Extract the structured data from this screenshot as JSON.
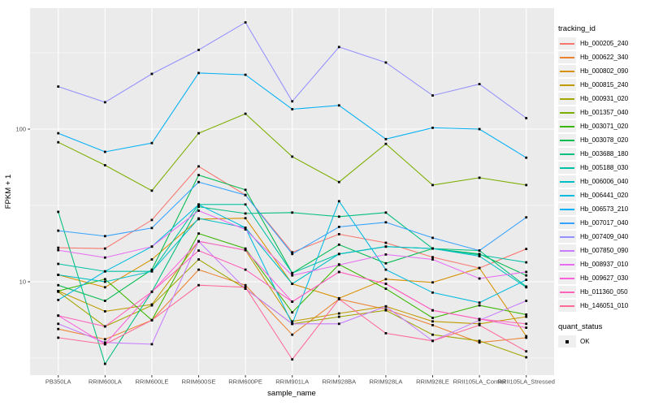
{
  "chart_data": {
    "type": "line",
    "title": "",
    "xlabel": "sample_name",
    "ylabel": "FPKM + 1",
    "y_scale": "log10",
    "y_ticks": [
      10,
      100
    ],
    "y_tick_labels": [
      "10",
      "100"
    ],
    "y_minor_ticks": [
      3.162,
      31.62,
      316.2
    ],
    "ylim": [
      2.44,
      620
    ],
    "grid": true,
    "panel_bg": "#ebebeb",
    "grid_color": "#ffffff",
    "point_color": "#000000",
    "legend_position": "right",
    "legend_title": "tracking_id",
    "quant_status": {
      "title": "quant_status",
      "items": [
        {
          "label": "OK",
          "marker": "black-square"
        }
      ]
    },
    "categories": [
      "PB350LA",
      "RRIM600LA",
      "RRIM600LE",
      "RRIM600SE",
      "RRIM600PE",
      "RRIM901LA",
      "RRIM928BA",
      "RRIM928LA",
      "RRIM928LE",
      "RRII105LA_Control",
      "RRII105LA_Stressed"
    ],
    "series": [
      {
        "name": "Hb_000205_240",
        "color": "#F8766D",
        "values": [
          16.7,
          16.5,
          25.4,
          57,
          37,
          15.6,
          20.5,
          18,
          14.5,
          12.3,
          16.4
        ]
      },
      {
        "name": "Hb_000622_340",
        "color": "#EA8331",
        "values": [
          4.9,
          4.2,
          5.6,
          12,
          9.5,
          4.5,
          7.7,
          6.6,
          5.2,
          4.0,
          4.3
        ]
      },
      {
        "name": "Hb_000802_090",
        "color": "#D89000",
        "values": [
          11.1,
          9.2,
          14,
          25.7,
          26.1,
          9.7,
          7.8,
          10.4,
          9.9,
          12.3,
          4.4
        ]
      },
      {
        "name": "Hb_000815_240",
        "color": "#C09B00",
        "values": [
          8.7,
          6.4,
          7.1,
          18.4,
          16.1,
          5.5,
          6.2,
          6.9,
          5.5,
          5.3,
          5.9
        ]
      },
      {
        "name": "Hb_000931_020",
        "color": "#A3A500",
        "values": [
          8.6,
          5.1,
          7.0,
          14,
          9.0,
          5.3,
          5.9,
          6.5,
          4.5,
          4.1,
          3.2
        ]
      },
      {
        "name": "Hb_001357_040",
        "color": "#7CAE00",
        "values": [
          82,
          58,
          39.5,
          94,
          126,
          66,
          45,
          80,
          43,
          48,
          43
        ]
      },
      {
        "name": "Hb_003071_020",
        "color": "#39B600",
        "values": [
          8.7,
          10.4,
          5.6,
          20.7,
          16.5,
          6.3,
          13,
          9.0,
          5.8,
          7.0,
          6.1
        ]
      },
      {
        "name": "Hb_003078_020",
        "color": "#00BB4E",
        "values": [
          9.5,
          7.5,
          12,
          50,
          40,
          11.4,
          17.5,
          13.2,
          16.5,
          15.2,
          11
        ]
      },
      {
        "name": "Hb_003688_180",
        "color": "#00BF7D",
        "values": [
          28.7,
          2.9,
          8.6,
          31,
          28,
          28.4,
          26.7,
          28.4,
          16.5,
          16,
          9.3
        ]
      },
      {
        "name": "Hb_005188_030",
        "color": "#00C1A3",
        "values": [
          13.1,
          11.7,
          11.7,
          32.1,
          32.1,
          11.4,
          15.2,
          17.0,
          16.5,
          15.0,
          13.4
        ]
      },
      {
        "name": "Hb_006006_040",
        "color": "#00BFC4",
        "values": [
          11.1,
          10.0,
          11.7,
          26,
          22.6,
          9.7,
          15.2,
          17.0,
          16.5,
          14.7,
          9.2
        ]
      },
      {
        "name": "Hb_006441_020",
        "color": "#00BAE0",
        "values": [
          7.6,
          11.7,
          17,
          32,
          22.6,
          5.3,
          33.7,
          12,
          8.5,
          7.3,
          10.3
        ]
      },
      {
        "name": "Hb_006573_210",
        "color": "#00B0F6",
        "values": [
          94,
          71,
          81,
          233,
          227,
          135,
          143,
          86,
          102,
          100,
          65
        ]
      },
      {
        "name": "Hb_007017_040",
        "color": "#35A2FF",
        "values": [
          21.6,
          19.9,
          22.5,
          45,
          37,
          15.2,
          22.9,
          24.5,
          19.4,
          16,
          26.4
        ]
      },
      {
        "name": "Hb_007409_040",
        "color": "#9590FF",
        "values": [
          190,
          150,
          230,
          330,
          500,
          152,
          345,
          273,
          166,
          197,
          118
        ]
      },
      {
        "name": "Hb_007850_090",
        "color": "#C77CFF",
        "values": [
          5.3,
          4.0,
          3.9,
          18.4,
          9.0,
          5.3,
          5.3,
          6.9,
          4.1,
          5.6,
          7.5
        ]
      },
      {
        "name": "Hb_008937_010",
        "color": "#E76BF3",
        "values": [
          16.1,
          14.4,
          17,
          29.2,
          22,
          11,
          12.9,
          15.1,
          14,
          10.5,
          11.6
        ]
      },
      {
        "name": "Hb_009627_030",
        "color": "#FA62DB",
        "values": [
          6.0,
          3.9,
          8.6,
          18.4,
          16.1,
          7.4,
          11.6,
          9.7,
          6.5,
          5.7,
          5.0
        ]
      },
      {
        "name": "Hb_011360_050",
        "color": "#FF62BC",
        "values": [
          6.0,
          5.1,
          8.6,
          16,
          12,
          7.4,
          11.6,
          9.7,
          6.5,
          5.7,
          5.3
        ]
      },
      {
        "name": "Hb_146051_010",
        "color": "#FF6A98",
        "values": [
          4.3,
          3.9,
          5.6,
          9.5,
          9.2,
          3.1,
          7.7,
          4.6,
          4.1,
          5.2,
          3.5
        ]
      }
    ]
  }
}
